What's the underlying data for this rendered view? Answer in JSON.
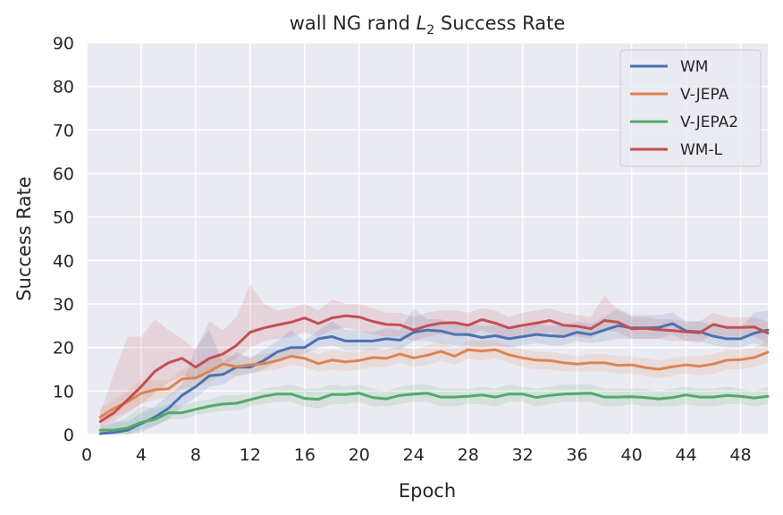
{
  "chart_data": {
    "type": "line",
    "title_parts": {
      "pre": "wall NG rand ",
      "var": "L",
      "sub": "2",
      "post": " Success Rate"
    },
    "xlabel": "Epoch",
    "ylabel": "Success Rate",
    "xlim": [
      0,
      50
    ],
    "ylim": [
      0,
      90
    ],
    "xticks": [
      0,
      4,
      8,
      12,
      16,
      20,
      24,
      28,
      32,
      36,
      40,
      44,
      48
    ],
    "yticks": [
      0,
      10,
      20,
      30,
      40,
      50,
      60,
      70,
      80,
      90
    ],
    "grid": true,
    "legend_position": "top-right",
    "x": [
      1,
      2,
      3,
      4,
      5,
      6,
      7,
      8,
      9,
      10,
      11,
      12,
      13,
      14,
      15,
      16,
      17,
      18,
      19,
      20,
      21,
      22,
      23,
      24,
      25,
      26,
      27,
      28,
      29,
      30,
      31,
      32,
      33,
      34,
      35,
      36,
      37,
      38,
      39,
      40,
      41,
      42,
      43,
      44,
      45,
      46,
      47,
      48,
      49,
      50
    ],
    "series": [
      {
        "name": "WM",
        "color": "#4c72b0",
        "values": [
          0.2,
          0.5,
          1,
          2.5,
          4,
          6,
          9,
          11,
          13.5,
          13.8,
          15.5,
          15.5,
          17,
          19,
          20,
          20,
          22,
          22.5,
          21.5,
          21.5,
          21.5,
          22,
          21.7,
          23.5,
          24,
          23.8,
          23,
          23,
          22.3,
          22.7,
          22,
          22.5,
          23,
          22.7,
          22.5,
          23.5,
          23,
          24,
          25,
          24.5,
          24.5,
          24.6,
          25.5,
          23.8,
          23.6,
          22.6,
          22,
          22,
          23.3,
          24
        ],
        "lower": [
          0,
          0,
          0,
          0.5,
          2,
          3.5,
          6.5,
          8.5,
          11,
          11.5,
          13.5,
          14,
          15,
          17,
          18,
          18.5,
          20,
          20.5,
          19.5,
          19.5,
          19.5,
          20,
          19.5,
          21.5,
          21.5,
          21,
          20.5,
          20.5,
          20,
          20.5,
          20,
          20.5,
          21,
          20.5,
          20.5,
          21.5,
          21,
          21.5,
          22,
          22,
          22,
          22,
          23,
          21.5,
          21.5,
          20.5,
          20,
          20,
          21,
          20
        ],
        "upper": [
          1,
          3,
          3,
          5,
          6.5,
          9,
          11.5,
          20,
          24,
          16.5,
          19,
          17.5,
          19.5,
          21.5,
          24,
          21.5,
          24,
          26,
          24,
          24,
          23.5,
          24.5,
          24,
          29,
          26.5,
          26.5,
          25.5,
          25.5,
          25,
          25,
          24.5,
          25,
          25.5,
          25,
          25,
          26,
          25.5,
          27,
          29,
          27.5,
          27.5,
          27.5,
          28,
          26,
          26,
          25,
          24.5,
          24.5,
          28,
          28.5
        ]
      },
      {
        "name": "V-JEPA",
        "color": "#dd8452",
        "values": [
          4,
          6,
          7.5,
          9.5,
          10.3,
          10.5,
          12.8,
          13,
          14.5,
          16.2,
          15.6,
          16,
          16.3,
          17,
          18,
          17.5,
          16.3,
          17.1,
          16.7,
          17,
          17.7,
          17.5,
          18.5,
          17.6,
          18.2,
          19.1,
          18,
          19.5,
          19.2,
          19.5,
          18.3,
          17.6,
          17.1,
          17,
          16.5,
          16.2,
          16.5,
          16.5,
          15.9,
          16,
          15.4,
          15,
          15.6,
          16,
          15.7,
          16.2,
          17.1,
          17.2,
          17.7,
          18.9
        ],
        "lower": [
          2,
          4,
          5.5,
          7,
          8,
          8.5,
          10.5,
          11,
          12,
          14,
          13.5,
          14,
          14.5,
          15,
          16,
          15.5,
          14.5,
          15,
          14.5,
          15,
          15.5,
          15.5,
          16.5,
          15.5,
          16,
          17,
          16,
          17.5,
          17,
          17.5,
          16.5,
          15.5,
          15,
          15,
          14.5,
          14.5,
          14.5,
          14.5,
          14,
          14,
          13.5,
          13,
          13.5,
          14,
          13.5,
          14,
          15,
          15,
          15.5,
          16.5
        ],
        "upper": [
          6,
          8,
          10,
          12.5,
          12.5,
          12.5,
          15,
          15.5,
          17,
          18.5,
          18,
          18,
          18.5,
          19,
          20,
          19.5,
          18.5,
          19.5,
          19,
          19,
          20,
          19.5,
          20.5,
          19.5,
          20.5,
          21.5,
          20,
          21.5,
          21.5,
          21.5,
          20.5,
          19.5,
          19,
          19,
          18.5,
          18,
          18.5,
          18.5,
          18,
          18,
          17.5,
          17,
          17.5,
          18,
          18,
          18.5,
          19.5,
          19.5,
          20,
          21.5
        ]
      },
      {
        "name": "V-JEPA2",
        "color": "#55a868",
        "values": [
          1,
          1,
          1.5,
          2.8,
          3.5,
          5,
          5,
          5.8,
          6.5,
          7,
          7.2,
          8,
          8.8,
          9.3,
          9.3,
          8.3,
          8.1,
          9.2,
          9.2,
          9.5,
          8.5,
          8.2,
          9,
          9.3,
          9.5,
          8.6,
          8.6,
          8.8,
          9.1,
          8.6,
          9.3,
          9.3,
          8.5,
          9,
          9.3,
          9.4,
          9.5,
          8.6,
          8.6,
          8.7,
          8.5,
          8.2,
          8.5,
          9.1,
          8.6,
          8.6,
          9,
          8.8,
          8.4,
          8.8
        ],
        "lower": [
          0,
          0,
          0,
          1,
          2,
          3.5,
          3.5,
          4.5,
          5,
          5.5,
          5.5,
          6.5,
          7,
          7.5,
          7.5,
          6.5,
          6,
          7,
          7,
          7.5,
          6.5,
          6.5,
          7,
          7.5,
          7.5,
          6.5,
          6.5,
          7,
          7,
          6.5,
          7.5,
          7.5,
          6.5,
          7,
          7.5,
          7.5,
          7.5,
          6.5,
          6.5,
          7,
          6.5,
          6.5,
          6.5,
          7,
          6.5,
          6.5,
          7,
          7,
          6.5,
          7
        ],
        "upper": [
          2,
          2.5,
          4,
          6.5,
          6,
          7,
          6.5,
          7.5,
          8,
          9,
          9,
          9.5,
          10.5,
          11,
          11.5,
          10.5,
          10.5,
          11.5,
          11,
          11.5,
          10.5,
          10,
          11,
          11.5,
          11.5,
          10.5,
          10.5,
          10.5,
          11,
          10.5,
          11.5,
          11,
          10.5,
          11,
          11.5,
          11.5,
          11.5,
          10.5,
          10.5,
          10.5,
          10.5,
          10,
          10.5,
          11,
          10.5,
          10.5,
          11,
          10.5,
          10,
          11
        ]
      },
      {
        "name": "WM-L",
        "color": "#c44e52",
        "values": [
          3,
          5,
          8,
          11,
          14.5,
          16.5,
          17.5,
          15.5,
          17.5,
          18.5,
          20.5,
          23.5,
          24.5,
          25.2,
          25.8,
          26.8,
          25.5,
          26.8,
          27.3,
          27,
          26,
          25.3,
          25.2,
          24,
          25,
          25.6,
          25.7,
          25.1,
          26.4,
          25.6,
          24.5,
          25.1,
          25.6,
          26.2,
          25.1,
          24.9,
          24.3,
          26.2,
          25.8,
          24.3,
          24.4,
          24.1,
          23.9,
          23.6,
          23.4,
          25.3,
          24.6,
          24.6,
          24.7,
          23.3
        ],
        "lower": [
          1,
          3,
          5,
          7,
          9.5,
          12,
          13.5,
          12.5,
          14.5,
          16,
          17.5,
          20,
          21.5,
          22,
          22.5,
          23.5,
          22.5,
          24,
          24.5,
          24,
          23,
          22.5,
          22.5,
          21.5,
          22.5,
          23,
          23,
          22.5,
          24,
          23,
          22,
          22.5,
          23,
          23.5,
          22.5,
          22.5,
          22,
          24,
          23.5,
          22,
          22,
          22,
          21.5,
          21.5,
          21,
          23,
          22.5,
          22.5,
          22.5,
          21
        ],
        "upper": [
          5,
          14,
          22.5,
          22.5,
          26.5,
          24,
          22,
          19.5,
          26,
          24,
          27,
          34.5,
          30,
          28.5,
          29,
          30,
          28.5,
          31,
          30,
          30,
          29,
          28,
          28,
          27,
          28,
          28.5,
          28.5,
          28,
          29,
          28.5,
          27,
          28,
          28.5,
          29,
          28,
          27.5,
          27,
          32,
          28.5,
          27,
          27,
          26.5,
          26.5,
          26,
          26,
          28,
          27,
          27,
          27,
          26
        ]
      }
    ]
  }
}
